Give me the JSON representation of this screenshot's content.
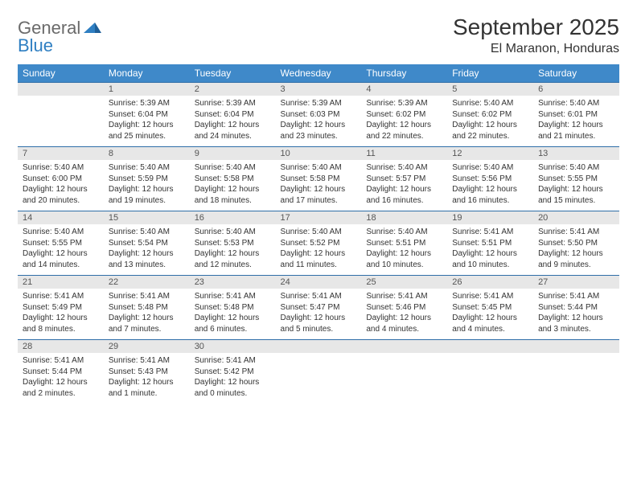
{
  "brand": {
    "part1": "General",
    "part2": "Blue"
  },
  "title": "September 2025",
  "location": "El Maranon, Honduras",
  "colors": {
    "header_bg": "#3f89c9",
    "header_text": "#ffffff",
    "daynum_bg": "#e7e7e7",
    "border": "#2f6ea8",
    "logo_gray": "#6a6a6a",
    "logo_blue": "#2f7fc2"
  },
  "daysOfWeek": [
    "Sunday",
    "Monday",
    "Tuesday",
    "Wednesday",
    "Thursday",
    "Friday",
    "Saturday"
  ],
  "weeks": [
    [
      {
        "num": "",
        "sunrise": "",
        "sunset": "",
        "daylight": ""
      },
      {
        "num": "1",
        "sunrise": "Sunrise: 5:39 AM",
        "sunset": "Sunset: 6:04 PM",
        "daylight": "Daylight: 12 hours and 25 minutes."
      },
      {
        "num": "2",
        "sunrise": "Sunrise: 5:39 AM",
        "sunset": "Sunset: 6:04 PM",
        "daylight": "Daylight: 12 hours and 24 minutes."
      },
      {
        "num": "3",
        "sunrise": "Sunrise: 5:39 AM",
        "sunset": "Sunset: 6:03 PM",
        "daylight": "Daylight: 12 hours and 23 minutes."
      },
      {
        "num": "4",
        "sunrise": "Sunrise: 5:39 AM",
        "sunset": "Sunset: 6:02 PM",
        "daylight": "Daylight: 12 hours and 22 minutes."
      },
      {
        "num": "5",
        "sunrise": "Sunrise: 5:40 AM",
        "sunset": "Sunset: 6:02 PM",
        "daylight": "Daylight: 12 hours and 22 minutes."
      },
      {
        "num": "6",
        "sunrise": "Sunrise: 5:40 AM",
        "sunset": "Sunset: 6:01 PM",
        "daylight": "Daylight: 12 hours and 21 minutes."
      }
    ],
    [
      {
        "num": "7",
        "sunrise": "Sunrise: 5:40 AM",
        "sunset": "Sunset: 6:00 PM",
        "daylight": "Daylight: 12 hours and 20 minutes."
      },
      {
        "num": "8",
        "sunrise": "Sunrise: 5:40 AM",
        "sunset": "Sunset: 5:59 PM",
        "daylight": "Daylight: 12 hours and 19 minutes."
      },
      {
        "num": "9",
        "sunrise": "Sunrise: 5:40 AM",
        "sunset": "Sunset: 5:58 PM",
        "daylight": "Daylight: 12 hours and 18 minutes."
      },
      {
        "num": "10",
        "sunrise": "Sunrise: 5:40 AM",
        "sunset": "Sunset: 5:58 PM",
        "daylight": "Daylight: 12 hours and 17 minutes."
      },
      {
        "num": "11",
        "sunrise": "Sunrise: 5:40 AM",
        "sunset": "Sunset: 5:57 PM",
        "daylight": "Daylight: 12 hours and 16 minutes."
      },
      {
        "num": "12",
        "sunrise": "Sunrise: 5:40 AM",
        "sunset": "Sunset: 5:56 PM",
        "daylight": "Daylight: 12 hours and 16 minutes."
      },
      {
        "num": "13",
        "sunrise": "Sunrise: 5:40 AM",
        "sunset": "Sunset: 5:55 PM",
        "daylight": "Daylight: 12 hours and 15 minutes."
      }
    ],
    [
      {
        "num": "14",
        "sunrise": "Sunrise: 5:40 AM",
        "sunset": "Sunset: 5:55 PM",
        "daylight": "Daylight: 12 hours and 14 minutes."
      },
      {
        "num": "15",
        "sunrise": "Sunrise: 5:40 AM",
        "sunset": "Sunset: 5:54 PM",
        "daylight": "Daylight: 12 hours and 13 minutes."
      },
      {
        "num": "16",
        "sunrise": "Sunrise: 5:40 AM",
        "sunset": "Sunset: 5:53 PM",
        "daylight": "Daylight: 12 hours and 12 minutes."
      },
      {
        "num": "17",
        "sunrise": "Sunrise: 5:40 AM",
        "sunset": "Sunset: 5:52 PM",
        "daylight": "Daylight: 12 hours and 11 minutes."
      },
      {
        "num": "18",
        "sunrise": "Sunrise: 5:40 AM",
        "sunset": "Sunset: 5:51 PM",
        "daylight": "Daylight: 12 hours and 10 minutes."
      },
      {
        "num": "19",
        "sunrise": "Sunrise: 5:41 AM",
        "sunset": "Sunset: 5:51 PM",
        "daylight": "Daylight: 12 hours and 10 minutes."
      },
      {
        "num": "20",
        "sunrise": "Sunrise: 5:41 AM",
        "sunset": "Sunset: 5:50 PM",
        "daylight": "Daylight: 12 hours and 9 minutes."
      }
    ],
    [
      {
        "num": "21",
        "sunrise": "Sunrise: 5:41 AM",
        "sunset": "Sunset: 5:49 PM",
        "daylight": "Daylight: 12 hours and 8 minutes."
      },
      {
        "num": "22",
        "sunrise": "Sunrise: 5:41 AM",
        "sunset": "Sunset: 5:48 PM",
        "daylight": "Daylight: 12 hours and 7 minutes."
      },
      {
        "num": "23",
        "sunrise": "Sunrise: 5:41 AM",
        "sunset": "Sunset: 5:48 PM",
        "daylight": "Daylight: 12 hours and 6 minutes."
      },
      {
        "num": "24",
        "sunrise": "Sunrise: 5:41 AM",
        "sunset": "Sunset: 5:47 PM",
        "daylight": "Daylight: 12 hours and 5 minutes."
      },
      {
        "num": "25",
        "sunrise": "Sunrise: 5:41 AM",
        "sunset": "Sunset: 5:46 PM",
        "daylight": "Daylight: 12 hours and 4 minutes."
      },
      {
        "num": "26",
        "sunrise": "Sunrise: 5:41 AM",
        "sunset": "Sunset: 5:45 PM",
        "daylight": "Daylight: 12 hours and 4 minutes."
      },
      {
        "num": "27",
        "sunrise": "Sunrise: 5:41 AM",
        "sunset": "Sunset: 5:44 PM",
        "daylight": "Daylight: 12 hours and 3 minutes."
      }
    ],
    [
      {
        "num": "28",
        "sunrise": "Sunrise: 5:41 AM",
        "sunset": "Sunset: 5:44 PM",
        "daylight": "Daylight: 12 hours and 2 minutes."
      },
      {
        "num": "29",
        "sunrise": "Sunrise: 5:41 AM",
        "sunset": "Sunset: 5:43 PM",
        "daylight": "Daylight: 12 hours and 1 minute."
      },
      {
        "num": "30",
        "sunrise": "Sunrise: 5:41 AM",
        "sunset": "Sunset: 5:42 PM",
        "daylight": "Daylight: 12 hours and 0 minutes."
      },
      {
        "num": "",
        "sunrise": "",
        "sunset": "",
        "daylight": ""
      },
      {
        "num": "",
        "sunrise": "",
        "sunset": "",
        "daylight": ""
      },
      {
        "num": "",
        "sunrise": "",
        "sunset": "",
        "daylight": ""
      },
      {
        "num": "",
        "sunrise": "",
        "sunset": "",
        "daylight": ""
      }
    ]
  ]
}
